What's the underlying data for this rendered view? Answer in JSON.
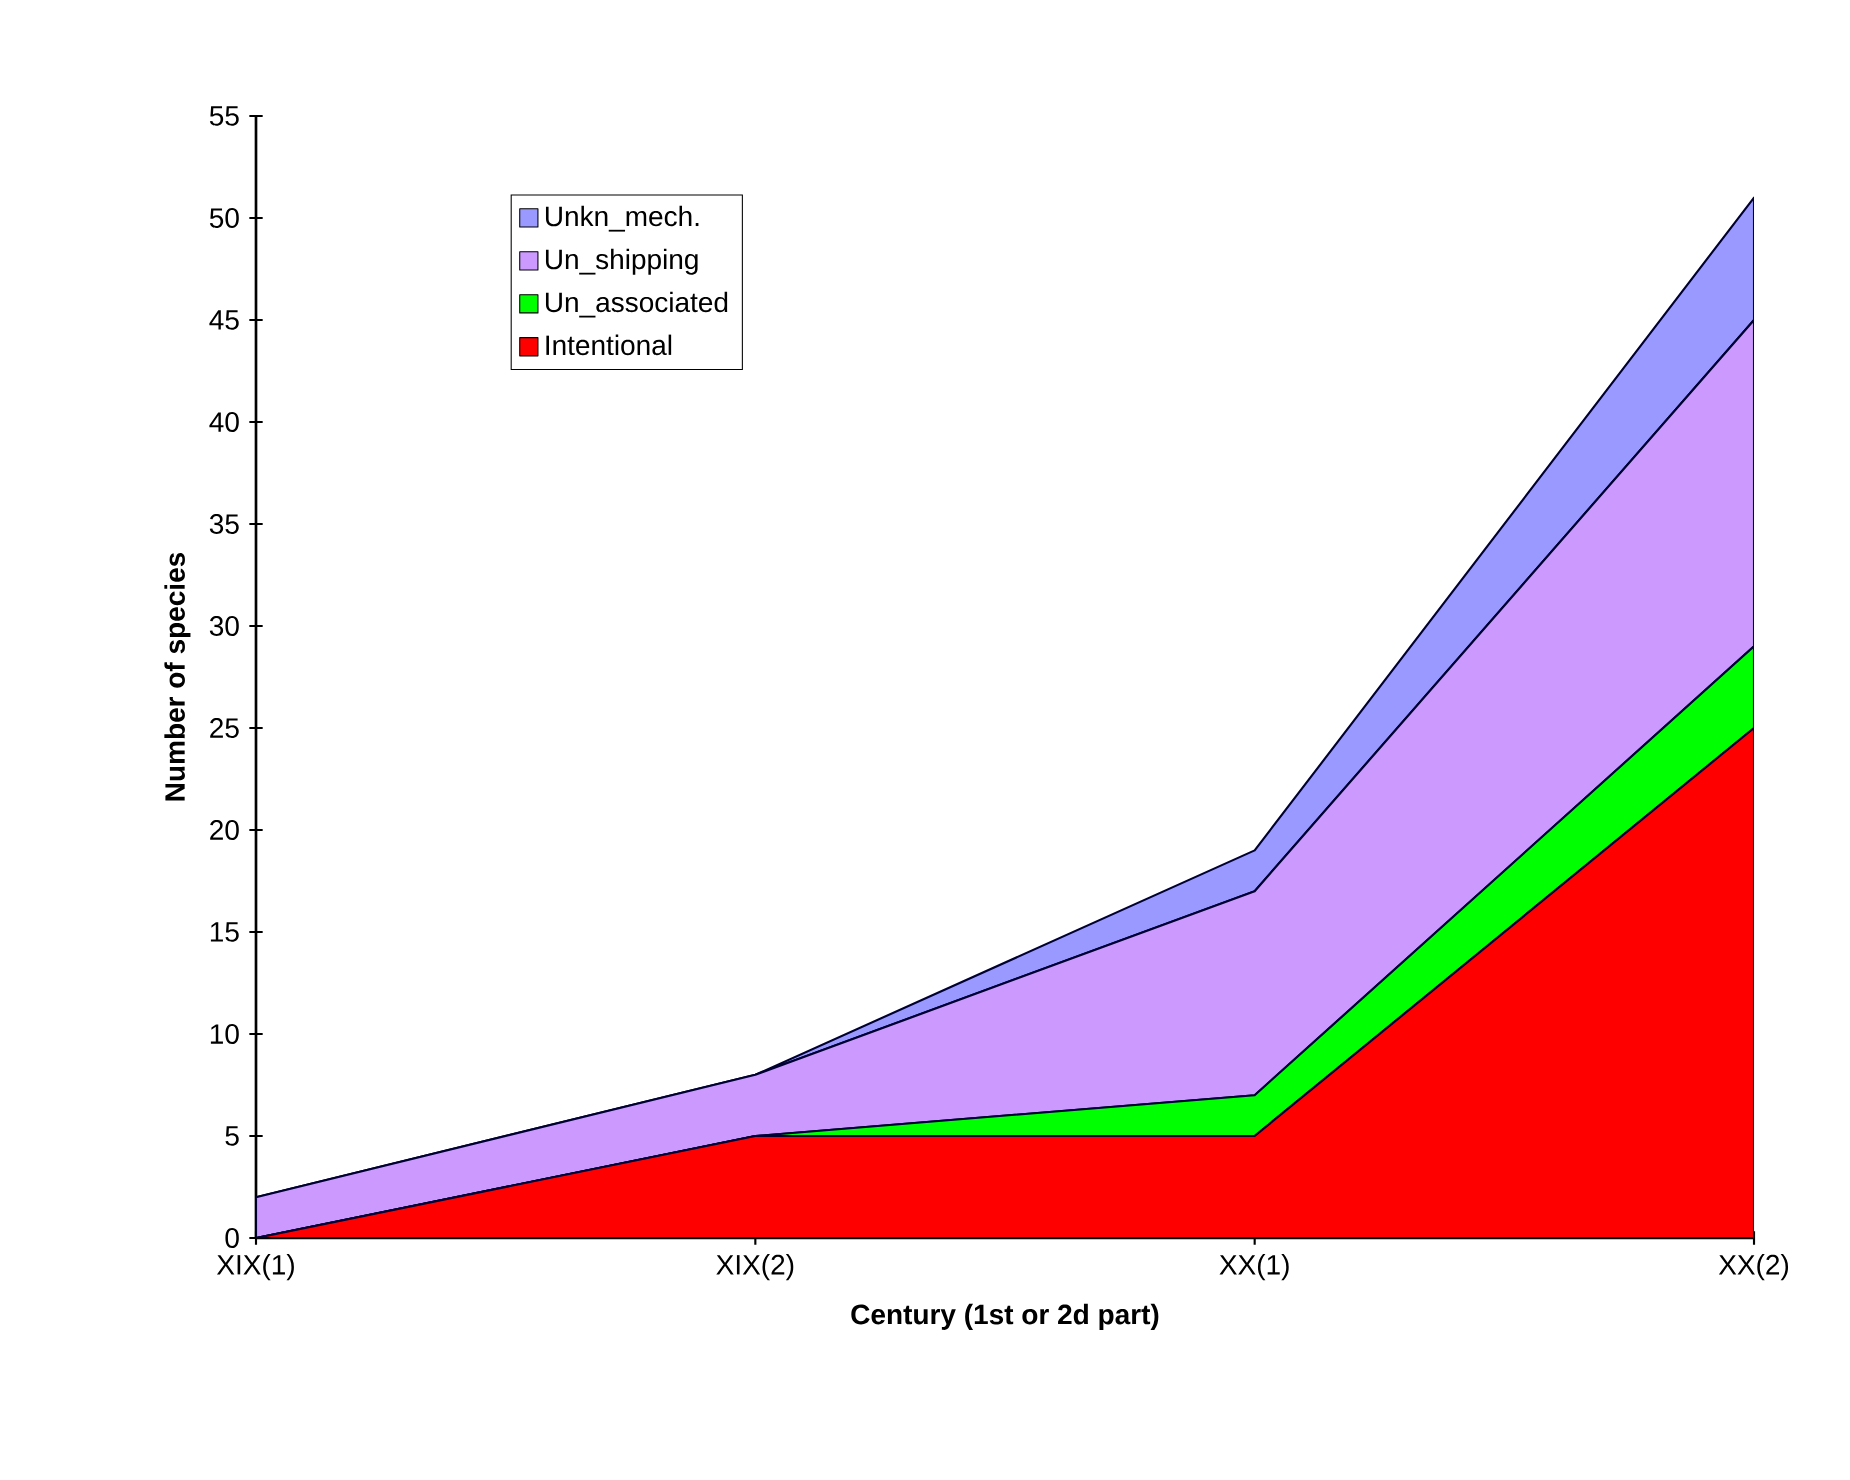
{
  "chart_data": {
    "type": "area",
    "stacked": true,
    "xlabel": "Century (1st or 2d part)",
    "ylabel": "Number of species",
    "categories": [
      "XIX(1)",
      "XIX(2)",
      "XX(1)",
      "XX(2)"
    ],
    "series": [
      {
        "name": "Intentional",
        "color": "#ff0000",
        "values": [
          0,
          5,
          5,
          25
        ]
      },
      {
        "name": "Un_associated",
        "color": "#00ff00",
        "values": [
          0,
          0,
          2,
          4
        ]
      },
      {
        "name": "Un_shipping",
        "color": "#cc99ff",
        "values": [
          2,
          3,
          10,
          16
        ]
      },
      {
        "name": "Unkn_mech.",
        "color": "#9999ff",
        "values": [
          0,
          0,
          2,
          6
        ]
      }
    ],
    "ylim": [
      0,
      55
    ],
    "yticks": [
      0,
      5,
      10,
      15,
      20,
      25,
      30,
      35,
      40,
      45,
      50,
      55
    ],
    "grid": false,
    "legend": "top left"
  }
}
